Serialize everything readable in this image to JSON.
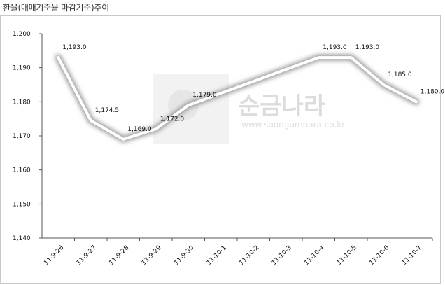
{
  "chart_data": {
    "type": "line",
    "title": "환율(매매기준율 마감기준)추이",
    "categories": [
      "11-9-26",
      "11-9-27",
      "11-9-28",
      "11-9-29",
      "11-9-30",
      "11-10-1",
      "11-10-2",
      "11-10-3",
      "11-10-4",
      "11-10-5",
      "11-10-6",
      "11-10-7"
    ],
    "values": [
      1193.0,
      1174.5,
      1169.0,
      1172.0,
      1179.0,
      1182.5,
      1186.0,
      1189.5,
      1193.0,
      1193.0,
      1185.0,
      1180.0
    ],
    "data_labels": [
      "1,193.0",
      "1,174.5",
      "1,169.0",
      "1,172.0",
      "1,179.0",
      null,
      null,
      null,
      "1,193.0",
      "1,193.0",
      "1,185.0",
      "1,180.0"
    ],
    "y_ticks": [
      "1,140",
      "1,150",
      "1,160",
      "1,170",
      "1,180",
      "1,190",
      "1,200"
    ],
    "ylim": [
      1140,
      1200
    ],
    "grid": false,
    "line_color": "#ffffff",
    "shadow_color": "#9a9a9a",
    "watermark": {
      "brand": "순금나라",
      "url": "www.soongumnara.co.kr"
    }
  }
}
